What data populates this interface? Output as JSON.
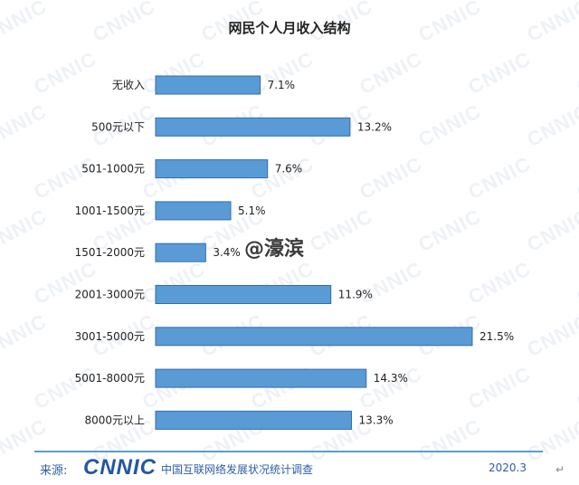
{
  "chart_data": {
    "type": "bar",
    "orientation": "horizontal",
    "title": "网民个人月收入结构",
    "categories": [
      "无收入",
      "500元以下",
      "501-1000元",
      "1001-1500元",
      "1501-2000元",
      "2001-3000元",
      "3001-5000元",
      "5001-8000元",
      "8000元以上"
    ],
    "values": [
      7.1,
      13.2,
      7.6,
      5.1,
      3.4,
      11.9,
      21.5,
      14.3,
      13.3
    ],
    "value_labels": [
      "7.1%",
      "13.2%",
      "7.6%",
      "5.1%",
      "3.4%",
      "11.9%",
      "21.5%",
      "14.3%",
      "13.3%"
    ],
    "value_unit": "%",
    "xlim": [
      0,
      21.5
    ],
    "grid": false,
    "legend": "none",
    "bar_color": "#5b9bd5",
    "bar_edge_color": "#2f6db3"
  },
  "watermark": {
    "text": "CNNIC",
    "overlay_text": "@濠滨"
  },
  "footer": {
    "source_label": "来源:",
    "logo_text": "CNNIC",
    "org_name": "中国互联网络发展状况统计调查",
    "date": "2020.3",
    "corner_glyph": "↵"
  }
}
